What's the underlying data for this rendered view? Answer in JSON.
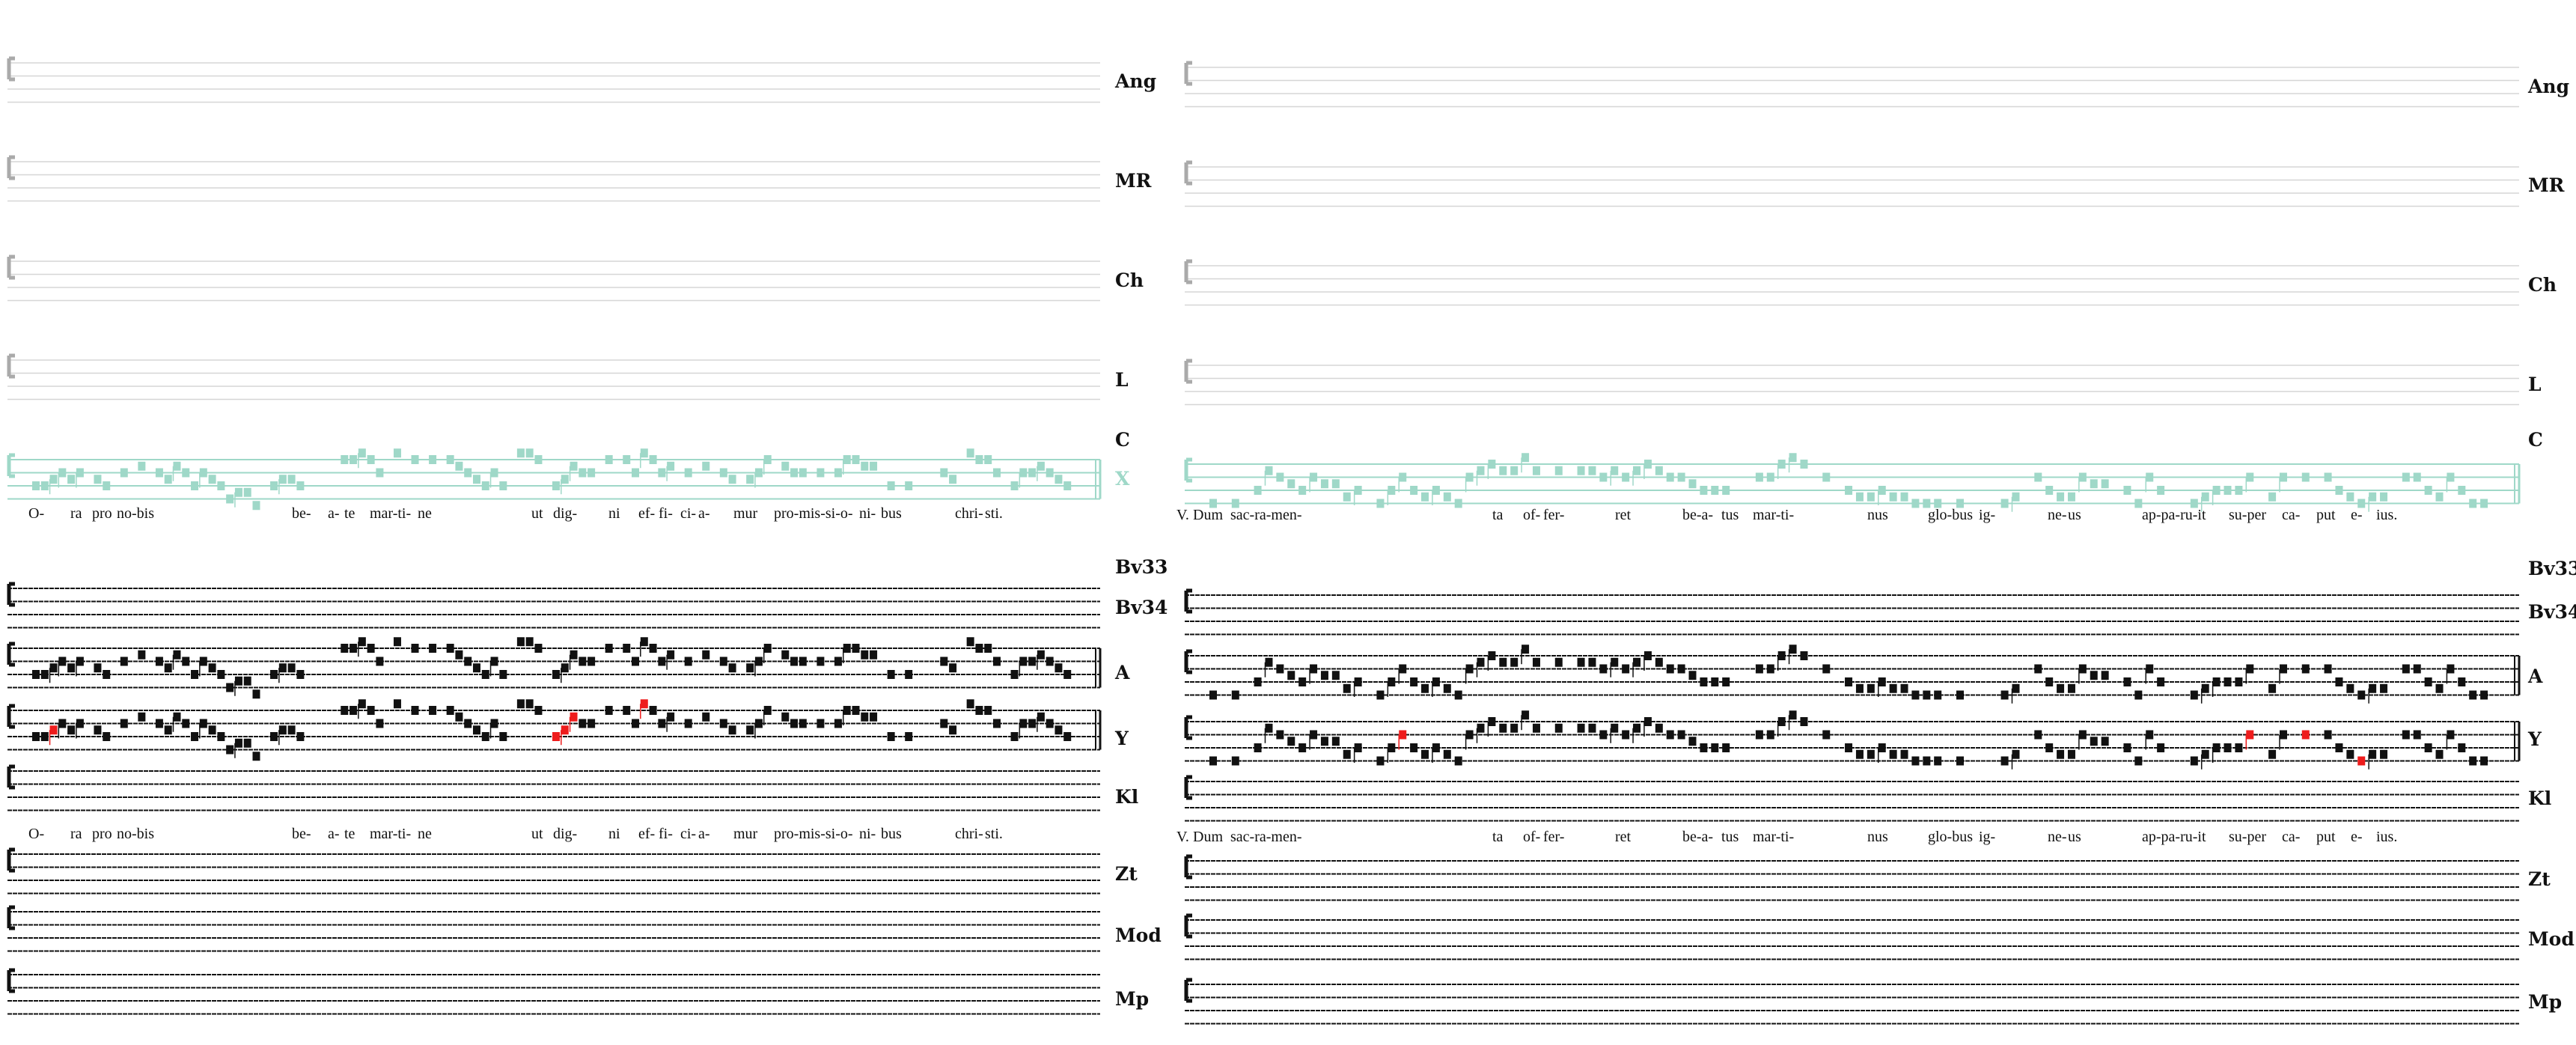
{
  "colors": {
    "teal": "#9fd8c8",
    "ink": "#111111",
    "faint": "#d6d6d6",
    "highlight": "#ee1c1c"
  },
  "left": {
    "labels": [
      "Ang",
      "MR",
      "Ch",
      "L",
      "C",
      "X",
      "Bv33",
      "Bv34",
      "A",
      "Y",
      "Kl",
      "Zt",
      "Mod",
      "Mp"
    ],
    "lyrics": [
      "O-",
      "ra",
      "pro",
      "no-bis",
      "be-",
      "a-",
      "te",
      "mar-ti-",
      "ne",
      "ut",
      "dig-",
      "ni",
      "ef-",
      "fi-",
      "ci-",
      "a-",
      "mur",
      "pro-mis-si-o-",
      "ni-",
      "bus",
      "chri-",
      "sti."
    ],
    "neumes": [
      2,
      2,
      3,
      4,
      3,
      4,
      null,
      3,
      2,
      null,
      4,
      null,
      5,
      null,
      4,
      3,
      5,
      4,
      2,
      4,
      3,
      2,
      0,
      1,
      1,
      -1,
      null,
      2,
      3,
      3,
      2,
      null,
      null,
      null,
      null,
      6,
      6,
      7,
      6,
      4,
      null,
      7,
      null,
      6,
      null,
      6,
      null,
      6,
      5,
      4,
      3,
      2,
      4,
      2,
      null,
      7,
      7,
      6,
      null,
      2,
      3,
      5,
      4,
      4,
      null,
      6,
      null,
      6,
      4,
      7,
      6,
      4,
      5,
      null,
      4,
      null,
      5,
      null,
      4,
      3,
      null,
      3,
      4,
      6,
      null,
      5,
      4,
      4,
      null,
      4,
      null,
      4,
      6,
      6,
      5,
      5,
      null,
      2,
      null,
      2,
      null,
      null,
      null,
      4,
      3,
      null,
      7,
      6,
      6,
      4,
      null,
      2,
      4,
      4,
      5,
      4,
      3,
      2
    ],
    "y_red_indices": [
      2,
      59,
      60,
      61,
      69
    ]
  },
  "right": {
    "labels": [
      "Ang",
      "MR",
      "Ch",
      "L",
      "C",
      "Bv33",
      "Bv34",
      "A",
      "Y",
      "Kl",
      "Zt",
      "Mod",
      "Mp"
    ],
    "lyrics": [
      "V.",
      "Dum",
      "sac-ra-men-",
      "ta",
      "of-",
      "fer-",
      "ret",
      "be-a-",
      "tus",
      "mar-ti-",
      "nus",
      "glo-bus",
      "ig-",
      "ne-",
      "us",
      "ap-pa-ru-it",
      "su-per",
      "ca-",
      "put",
      "e-",
      "ius."
    ],
    "neumes": [
      0,
      null,
      0,
      null,
      2,
      5,
      4,
      3,
      2,
      4,
      3,
      3,
      1,
      2,
      null,
      0,
      2,
      4,
      2,
      1,
      2,
      1,
      0,
      4,
      5,
      6,
      5,
      5,
      7,
      5,
      null,
      5,
      null,
      5,
      5,
      4,
      5,
      4,
      5,
      6,
      5,
      4,
      4,
      3,
      2,
      2,
      2,
      null,
      null,
      4,
      4,
      6,
      7,
      6,
      null,
      4,
      null,
      2,
      1,
      1,
      2,
      1,
      1,
      0,
      0,
      0,
      null,
      0,
      null,
      null,
      null,
      0,
      1,
      null,
      4,
      2,
      1,
      1,
      4,
      3,
      3,
      null,
      2,
      0,
      4,
      2,
      null,
      null,
      0,
      1,
      2,
      2,
      2,
      4,
      null,
      1,
      4,
      null,
      4,
      null,
      4,
      2,
      1,
      0,
      1,
      1,
      null,
      4,
      4,
      2,
      1,
      4,
      2,
      0,
      0
    ],
    "y_red_indices": [
      17,
      93,
      98,
      103
    ]
  }
}
